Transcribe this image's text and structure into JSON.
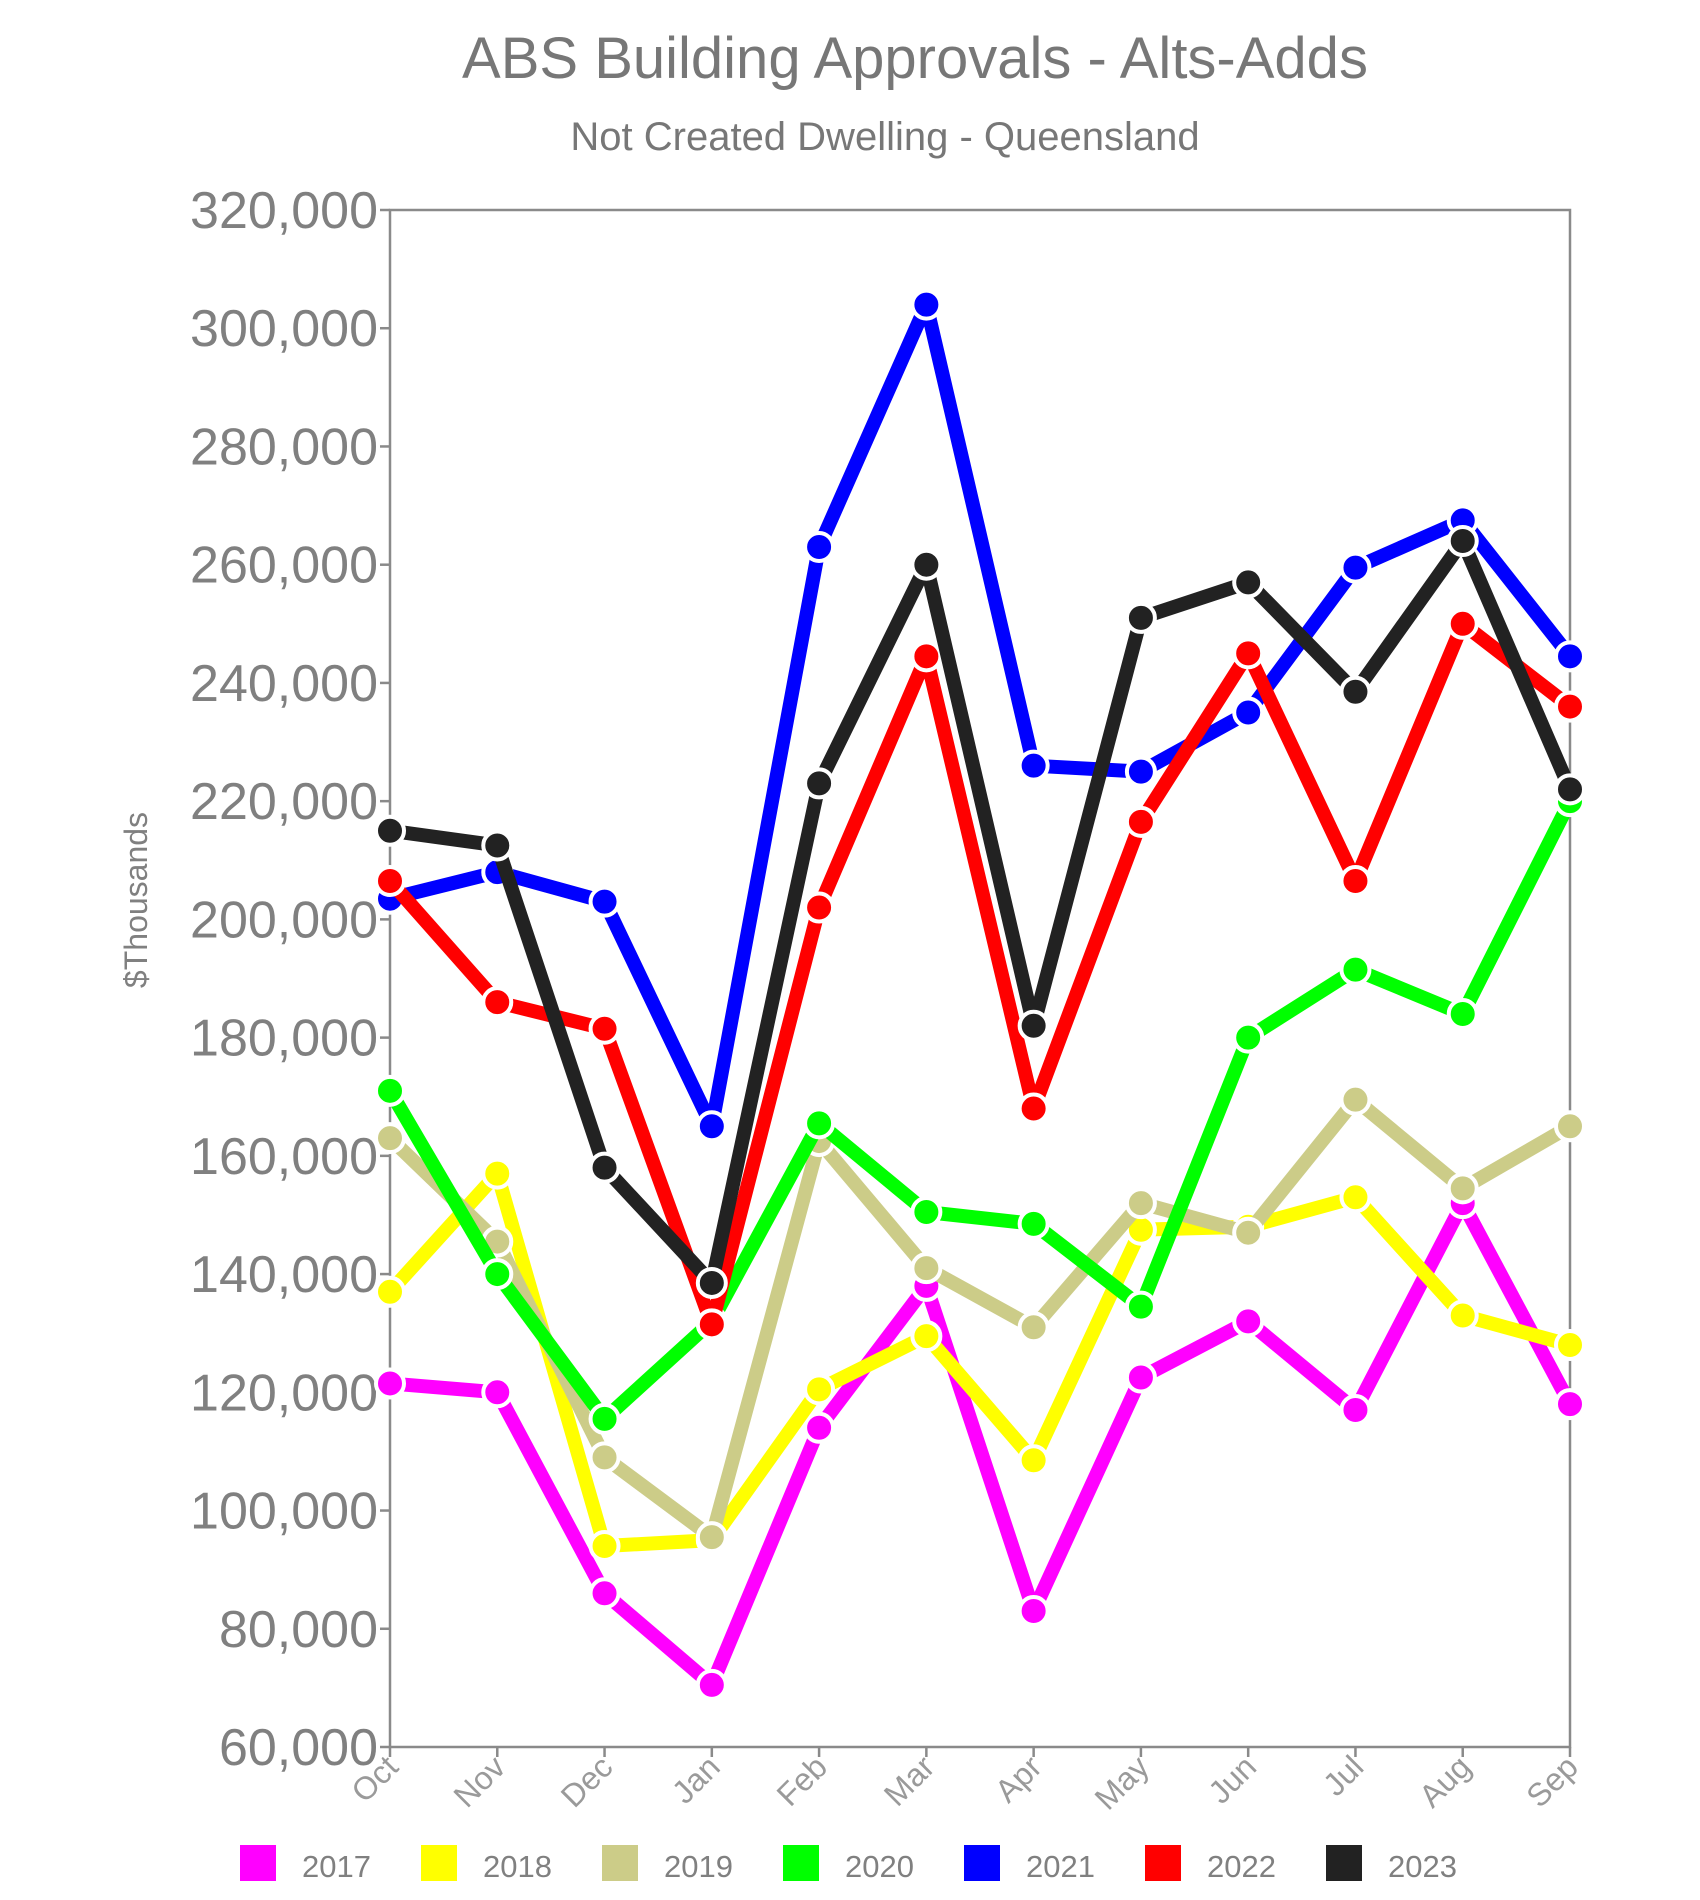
{
  "chart_data": {
    "type": "line",
    "title": "ABS Building Approvals - Alts-Adds",
    "subtitle": "Not Created Dwelling - Queensland",
    "ylabel": "$Thousands",
    "xlabel": "",
    "ylim": [
      60000,
      320000
    ],
    "yticks": [
      60000,
      80000,
      100000,
      120000,
      140000,
      160000,
      180000,
      200000,
      220000,
      240000,
      260000,
      280000,
      300000,
      320000
    ],
    "categories": [
      "Oct",
      "Nov",
      "Dec",
      "Jan",
      "Feb",
      "Mar",
      "Apr",
      "May",
      "Jun",
      "Jul",
      "Aug",
      "Sep"
    ],
    "grid": false,
    "legend_position": "bottom",
    "series": [
      {
        "name": "2017",
        "color": "#ff00ff",
        "values": [
          121500,
          120000,
          86000,
          70500,
          114000,
          138000,
          83000,
          122500,
          132000,
          117000,
          152000,
          118000
        ]
      },
      {
        "name": "2018",
        "color": "#ffff00",
        "values": [
          137000,
          157000,
          94000,
          95000,
          120500,
          129500,
          108500,
          147500,
          148000,
          153000,
          133000,
          128000
        ]
      },
      {
        "name": "2019",
        "color": "#cccc88",
        "values": [
          163000,
          145500,
          109000,
          95500,
          162500,
          141000,
          131000,
          152000,
          147000,
          169500,
          154500,
          165000
        ]
      },
      {
        "name": "2020",
        "color": "#00ff00",
        "values": [
          171000,
          140000,
          115500,
          132000,
          165500,
          150500,
          148500,
          134500,
          180000,
          191500,
          184000,
          220000
        ]
      },
      {
        "name": "2021",
        "color": "#0000ff",
        "values": [
          203500,
          208000,
          203000,
          165000,
          263000,
          304000,
          226000,
          225000,
          235000,
          259500,
          267500,
          244500
        ]
      },
      {
        "name": "2022",
        "color": "#ff0000",
        "values": [
          206500,
          186000,
          181500,
          131500,
          202000,
          244500,
          168000,
          216500,
          245000,
          206500,
          250000,
          236000
        ]
      },
      {
        "name": "2023",
        "color": "#222222",
        "values": [
          215000,
          212500,
          158000,
          138500,
          223000,
          260000,
          182000,
          251000,
          257000,
          238500,
          264000,
          222000
        ]
      }
    ]
  }
}
